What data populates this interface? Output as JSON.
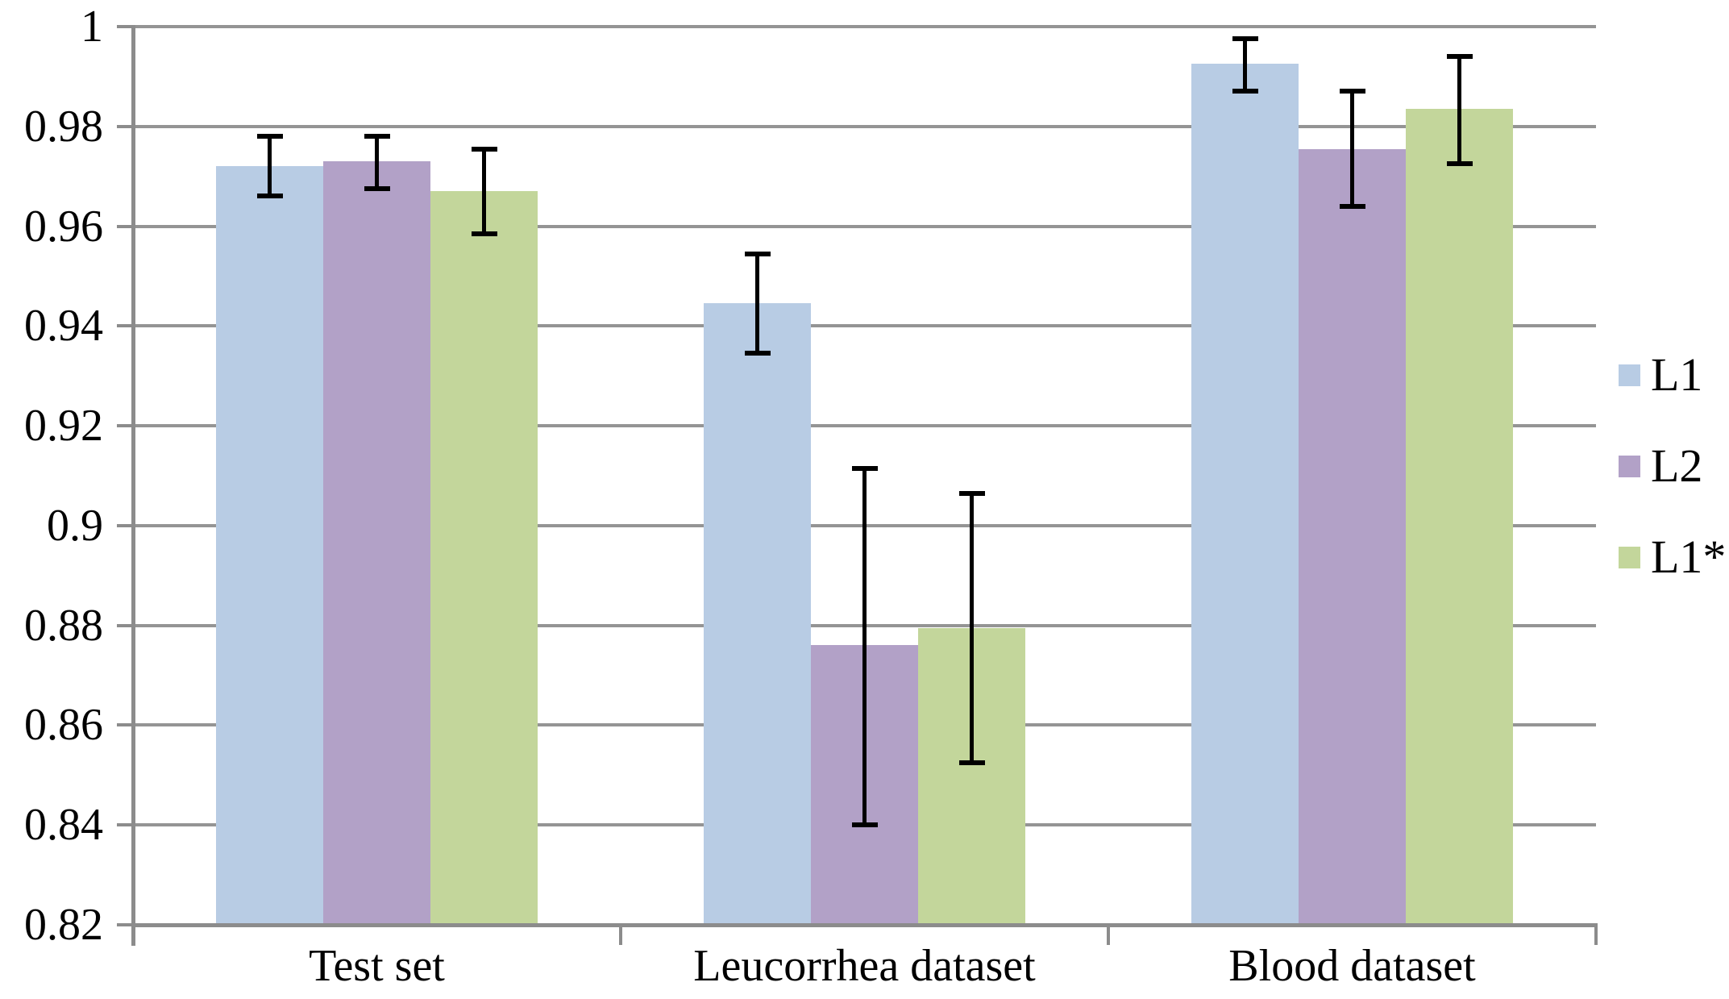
{
  "chart_data": {
    "type": "bar",
    "categories": [
      "Test set",
      "Leucorrhea dataset",
      "Blood dataset"
    ],
    "series": [
      {
        "name": "L1",
        "color": "#b8cce4",
        "values": [
          0.972,
          0.9445,
          0.9925
        ],
        "error_low": [
          0.966,
          0.9345,
          0.987
        ],
        "error_high": [
          0.978,
          0.9545,
          0.9975
        ]
      },
      {
        "name": "L2",
        "color": "#b2a1c7",
        "values": [
          0.973,
          0.876,
          0.9755
        ],
        "error_low": [
          0.9675,
          0.84,
          0.964
        ],
        "error_high": [
          0.978,
          0.9115,
          0.987
        ]
      },
      {
        "name": "L1*",
        "color": "#c3d69b",
        "values": [
          0.967,
          0.8795,
          0.9835
        ],
        "error_low": [
          0.9585,
          0.8525,
          0.9725
        ],
        "error_high": [
          0.9755,
          0.9065,
          0.994
        ]
      }
    ],
    "y_axis": {
      "min": 0.82,
      "max": 1.0,
      "step": 0.02,
      "tick_labels": [
        "1",
        "0.98",
        "0.96",
        "0.94",
        "0.92",
        "0.9",
        "0.88",
        "0.86",
        "0.84",
        "0.82"
      ]
    },
    "legend": {
      "position": "right",
      "items": [
        "L1",
        "L2",
        "L1*"
      ]
    },
    "grid": true,
    "error_bars": true,
    "colors": {
      "gridline": "#949494",
      "axis": "#8c8c8c",
      "error_bar": "#000000",
      "background": "#ffffff",
      "text": "#000000"
    }
  }
}
